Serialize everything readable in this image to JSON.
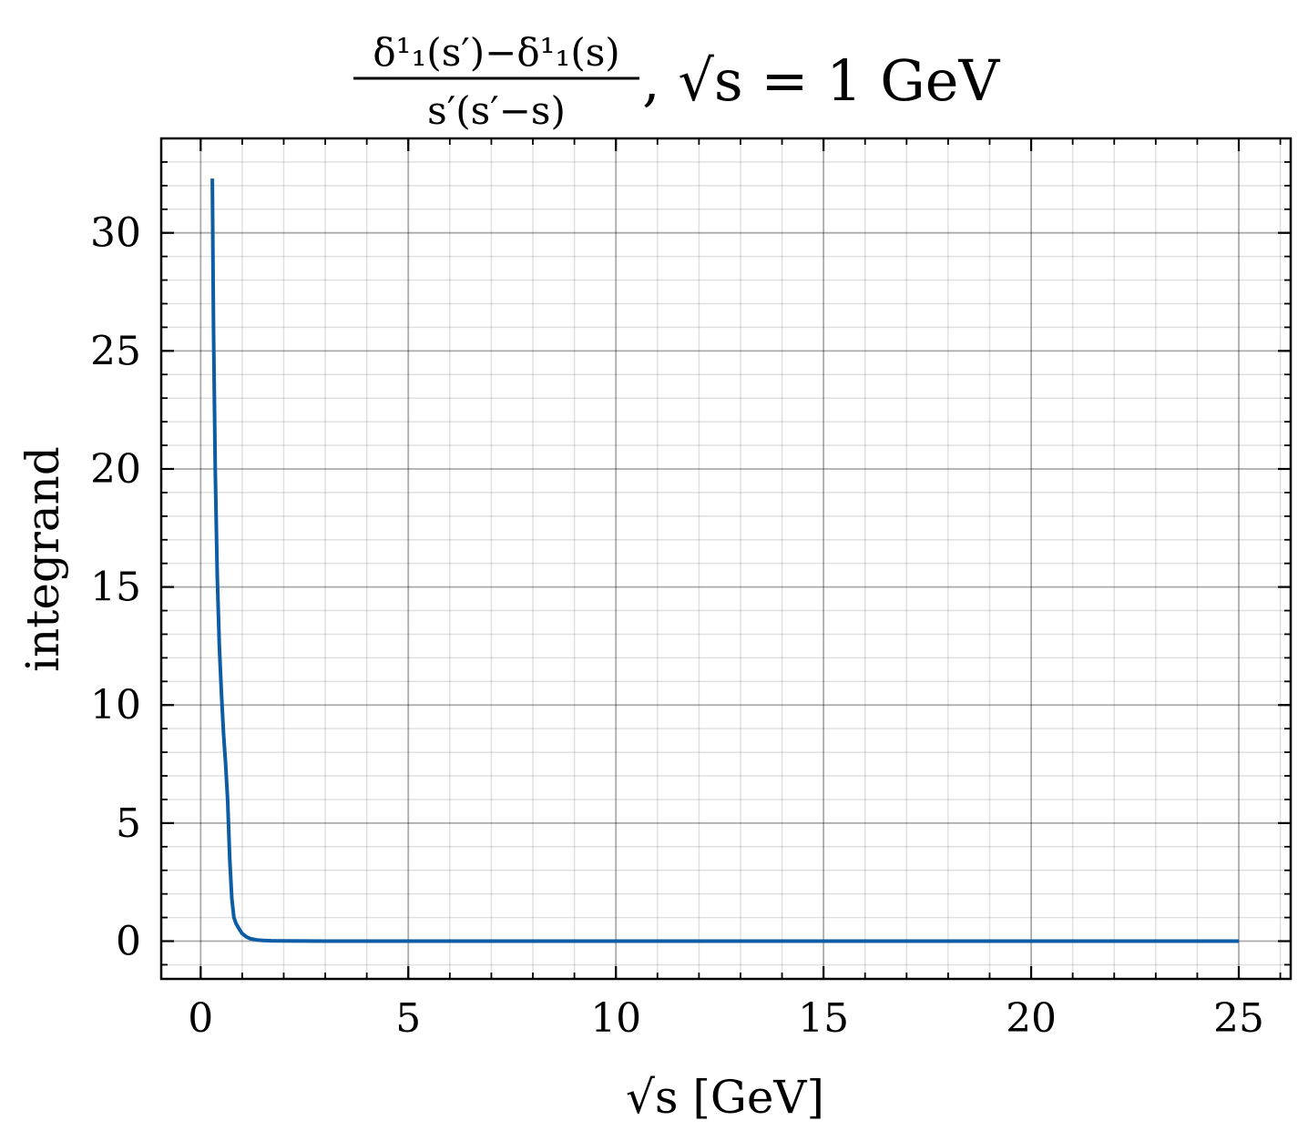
{
  "chart_data": {
    "type": "line",
    "title": {
      "numerator": "δ¹₁(s′)−δ¹₁(s)",
      "denominator": "s′(s′−s)",
      "suffix": ", √s = 1 GeV"
    },
    "xlabel": "√s [GeV]",
    "ylabel": "integrand",
    "xlim": [
      -0.95,
      26.25
    ],
    "ylim": [
      -1.6,
      34.0
    ],
    "xticks": [
      0,
      5,
      10,
      15,
      20,
      25
    ],
    "yticks": [
      0,
      5,
      10,
      15,
      20,
      25,
      30
    ],
    "x_minor_step": 1,
    "y_minor_step": 1,
    "grid": true,
    "series": [
      {
        "color": "#0C5DA5",
        "x": [
          0.28,
          0.31,
          0.35,
          0.4,
          0.45,
          0.5,
          0.55,
          0.6,
          0.65,
          0.7,
          0.75,
          0.8,
          0.85,
          0.9,
          0.95,
          1.0,
          1.1,
          1.2,
          1.35,
          1.5,
          1.7,
          2.0,
          2.5,
          3.0,
          4.0,
          5.0,
          7.5,
          10,
          15,
          20,
          25
        ],
        "y": [
          32.3,
          26.0,
          20.0,
          15.5,
          12.5,
          10.5,
          8.8,
          7.5,
          6.0,
          3.5,
          1.8,
          1.0,
          0.75,
          0.6,
          0.45,
          0.32,
          0.18,
          0.1,
          0.05,
          0.03,
          0.015,
          0.008,
          0.004,
          0.002,
          0.001,
          0.0005,
          0.0002,
          0.0001,
          5e-05,
          2e-05,
          1e-05
        ]
      }
    ]
  }
}
